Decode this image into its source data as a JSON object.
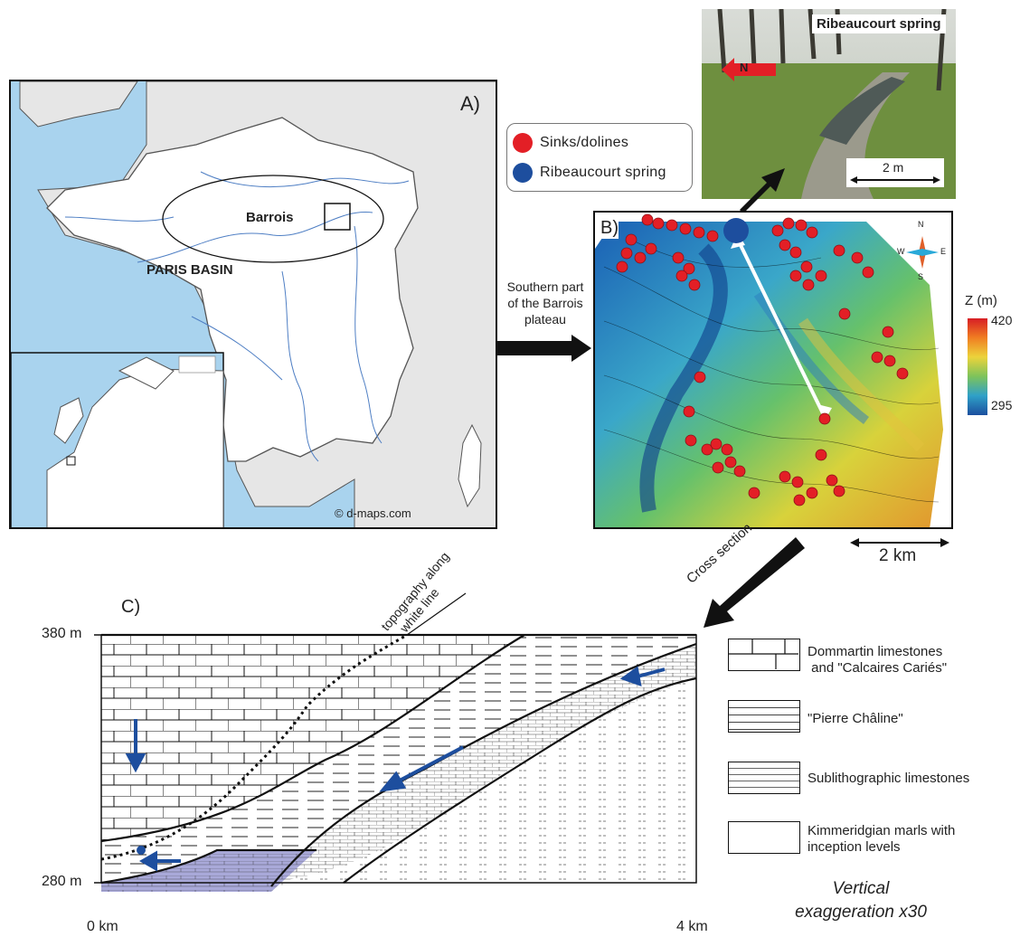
{
  "panel_a": {
    "label": "A)",
    "region_label": "Barrois",
    "basin_label": "PARIS BASIN",
    "credit": "© d-maps.com"
  },
  "photo": {
    "title": "Ribeaucourt spring",
    "north": "N",
    "scale": "2 m"
  },
  "legend_top": {
    "sinks": "Sinks/dolines",
    "spring": "Ribeaucourt spring",
    "sinks_color": "#e31f26",
    "spring_color": "#1d4e9e"
  },
  "arrow_text": {
    "line1": "Southern part",
    "line2": "of the Barrois",
    "line3": "plateau"
  },
  "panel_b": {
    "label": "B)",
    "scale": "2 km",
    "compass": {
      "n": "N",
      "s": "S",
      "e": "E",
      "w": "W"
    },
    "colorbar": {
      "title": "Z (m)",
      "max": "420",
      "min": "295"
    }
  },
  "cross_section_label": "Cross section",
  "panel_c": {
    "label": "C)",
    "topo_line1": "topography along",
    "topo_line2": "white line",
    "y_top": "380 m",
    "y_bottom": "280 m",
    "x_left": "0 km",
    "x_right": "4 km"
  },
  "legend_c": {
    "dommartin_1": "Dommartin limestones",
    "dommartin_2": " and \"Calcaires Cariés\"",
    "pierre": "\"Pierre Châline\"",
    "sublitho": "Sublithographic limestones",
    "kimm_1": "Kimmeridgian marls with",
    "kimm_2": "inception levels",
    "vert_1": "Vertical",
    "vert_2": "exaggeration x30"
  }
}
